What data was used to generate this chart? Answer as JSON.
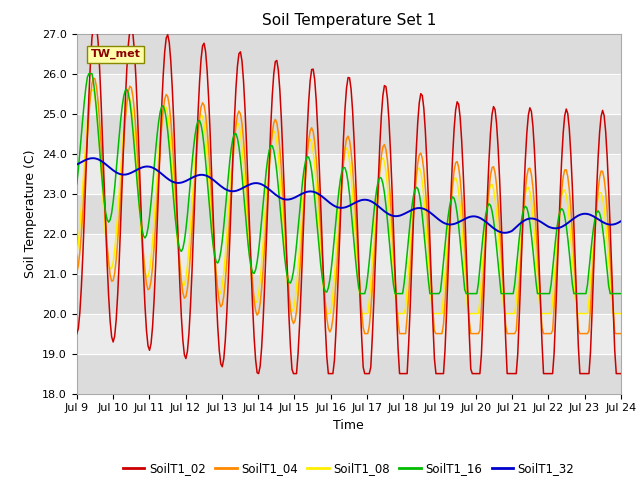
{
  "title": "Soil Temperature Set 1",
  "xlabel": "Time",
  "ylabel": "Soil Temperature (C)",
  "ylim": [
    18.0,
    27.0
  ],
  "yticks": [
    18.0,
    19.0,
    20.0,
    21.0,
    22.0,
    23.0,
    24.0,
    25.0,
    26.0,
    27.0
  ],
  "xtick_labels": [
    "Jul 9",
    "Jul 10",
    "Jul 11",
    "Jul 12",
    "Jul 13",
    "Jul 14",
    "Jul 15",
    "Jul 16",
    "Jul 17",
    "Jul 18",
    "Jul 19",
    "Jul 20",
    "Jul 21",
    "Jul 22",
    "Jul 23",
    "Jul 24"
  ],
  "series_colors": {
    "SoilT1_02": "#cc0000",
    "SoilT1_04": "#ff8800",
    "SoilT1_08": "#ffee00",
    "SoilT1_16": "#00bb00",
    "SoilT1_32": "#0000cc"
  },
  "annotation_text": "TW_met",
  "bg_dark": "#dcdcdc",
  "bg_light": "#ebebeb",
  "title_fontsize": 11,
  "axis_fontsize": 9,
  "tick_fontsize": 8
}
